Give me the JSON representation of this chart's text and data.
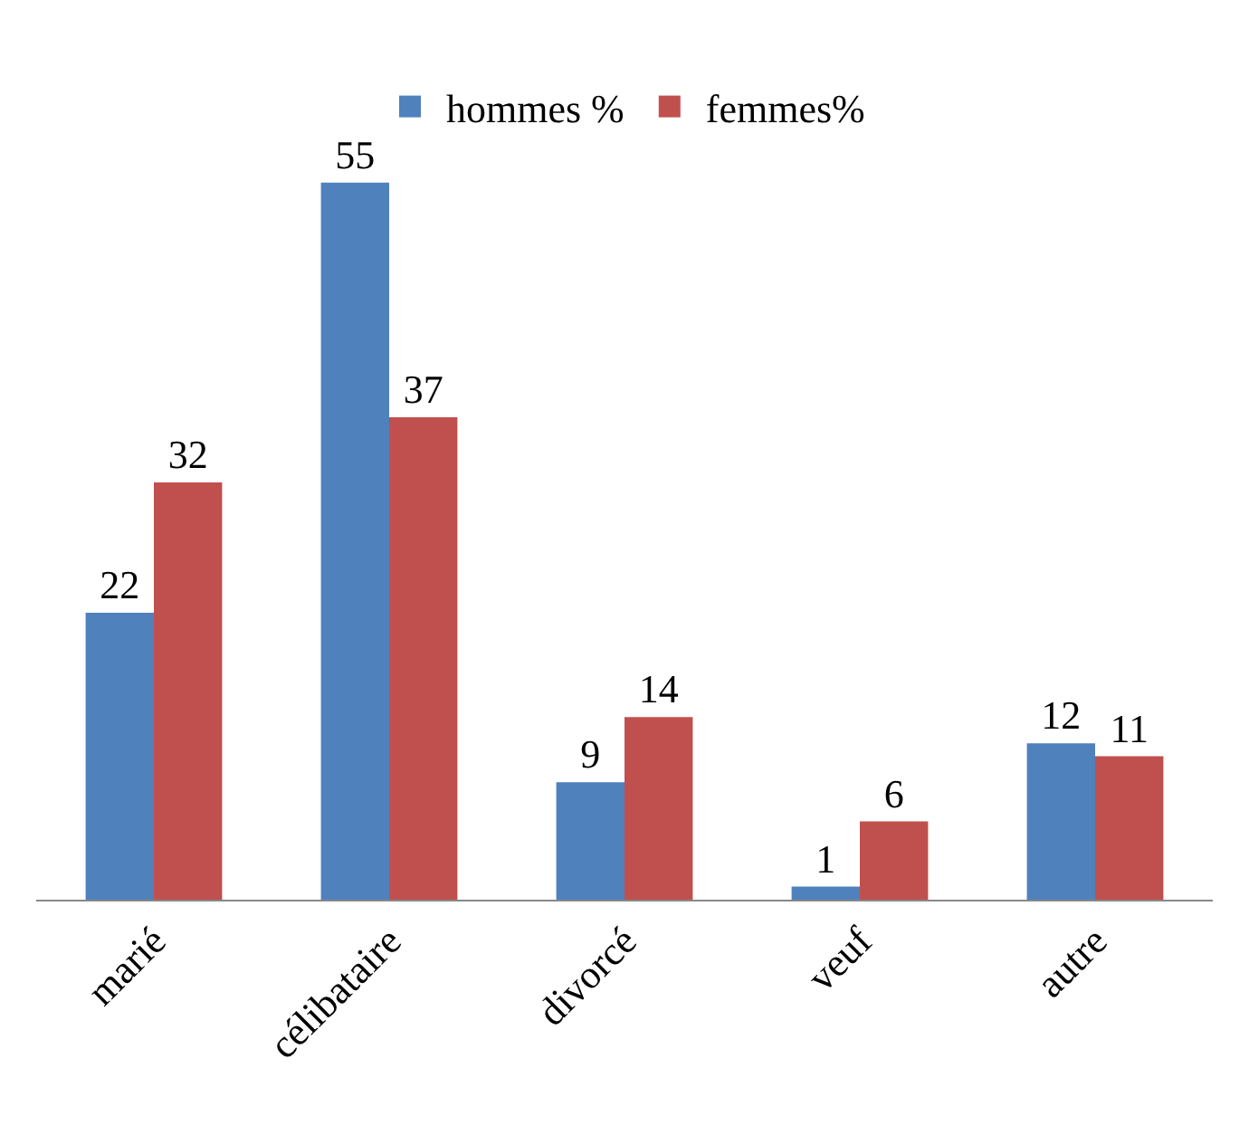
{
  "chart_data": {
    "type": "bar",
    "categories": [
      "marié",
      "célibataire",
      "divorcé",
      "veuf",
      "autre"
    ],
    "series": [
      {
        "name": "hommes %",
        "color": "#4f81bd",
        "values": [
          22,
          55,
          9,
          1,
          12
        ]
      },
      {
        "name": "femmes%",
        "color": "#c0504d",
        "values": [
          32,
          37,
          14,
          6,
          11
        ]
      }
    ],
    "data_labels": true,
    "legend": "top",
    "grid": false,
    "tick_labels": "x"
  }
}
